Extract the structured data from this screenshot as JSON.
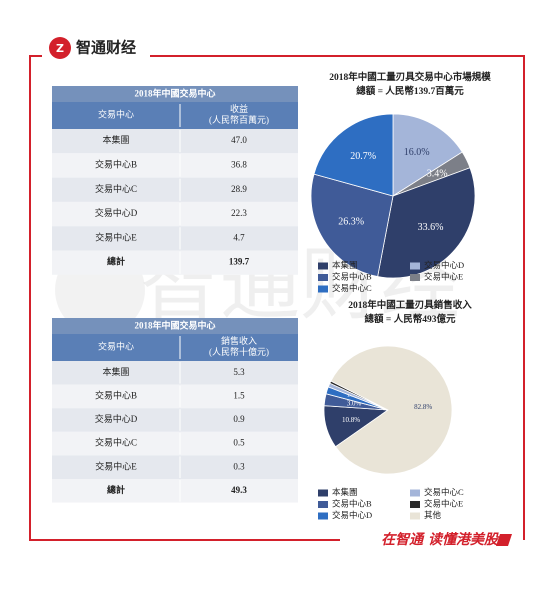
{
  "header": {
    "brand": "智通财经"
  },
  "footer": {
    "slogan": "在智通 读懂港美股"
  },
  "tables": [
    {
      "title": "2018年中國交易中心",
      "header": [
        [
          "交易中心"
        ],
        [
          "收益",
          "(人民幣百萬元)"
        ]
      ],
      "rows": [
        [
          "本集團",
          "47.0"
        ],
        [
          "交易中心B",
          "36.8"
        ],
        [
          "交易中心C",
          "28.9"
        ],
        [
          "交易中心D",
          "22.3"
        ],
        [
          "交易中心E",
          "4.7"
        ],
        [
          "總計",
          "139.7"
        ]
      ]
    },
    {
      "title": "2018年中國交易中心",
      "header": [
        [
          "交易中心"
        ],
        [
          "銷售收入",
          "(人民幣十億元)"
        ]
      ],
      "rows": [
        [
          "本集團",
          "5.3"
        ],
        [
          "交易中心B",
          "1.5"
        ],
        [
          "交易中心D",
          "0.9"
        ],
        [
          "交易中心C",
          "0.5"
        ],
        [
          "交易中心E",
          "0.3"
        ],
        [
          "總計",
          "49.3"
        ]
      ]
    }
  ],
  "chart_data": [
    {
      "type": "pie",
      "title": "2018年中國工量刃具交易中心市場規模",
      "subtitle": "總額 = 人民幣139.7百萬元",
      "categories": [
        "交易中心D",
        "交易中心E",
        "本集團",
        "交易中心B",
        "交易中心C"
      ],
      "values": [
        16.0,
        3.4,
        33.6,
        26.3,
        20.7
      ],
      "value_labels": [
        "16.0%",
        "3.4%",
        "33.6%",
        "26.3%",
        "20.7%"
      ],
      "colors": [
        "#a4b5d9",
        "#7c7f88",
        "#2f3f6a",
        "#405b98",
        "#2e6ec2"
      ],
      "legend_order": [
        2,
        3,
        4,
        0,
        1
      ]
    },
    {
      "type": "pie",
      "title": "2018年中國工量刃具銷售收入",
      "subtitle": "總額 = 人民幣493億元",
      "categories": [
        "本集團",
        "交易中心B",
        "交易中心D",
        "交易中心C",
        "交易中心E",
        "其他"
      ],
      "values": [
        10.8,
        3.0,
        1.8,
        1.0,
        0.6,
        82.8
      ],
      "value_labels": [
        "10.8%",
        "3.0%",
        "1.8%",
        "1.0%",
        "0.6%",
        "82.8%"
      ],
      "colors": [
        "#2f3f6a",
        "#405b98",
        "#2e6ec2",
        "#a4b5d9",
        "#2b2b2b",
        "#e9e4d7"
      ],
      "legend_order": [
        0,
        1,
        2,
        3,
        4,
        5
      ]
    }
  ]
}
